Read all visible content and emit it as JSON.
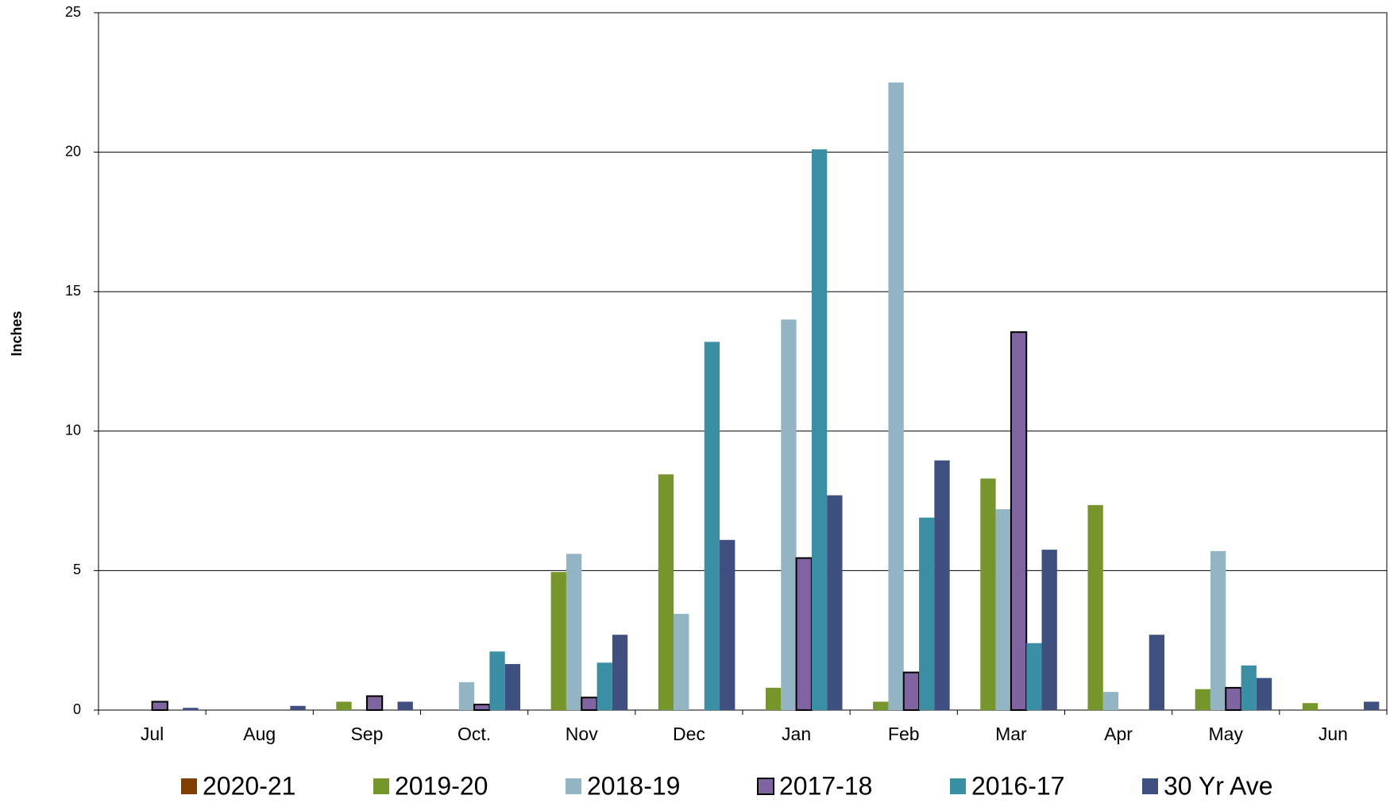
{
  "chart_data": {
    "type": "bar",
    "y_label": "Inches",
    "categories": [
      "Jul",
      "Aug",
      "Sep",
      "Oct.",
      "Nov",
      "Dec",
      "Jan",
      "Feb",
      "Mar",
      "Apr",
      "May",
      "Jun"
    ],
    "series": [
      {
        "name": "2020-21",
        "color": "#7f3f00",
        "values": [
          null,
          null,
          null,
          null,
          null,
          null,
          null,
          null,
          null,
          null,
          null,
          null
        ]
      },
      {
        "name": "2019-20",
        "color": "#76962b",
        "values": [
          0,
          0,
          0.3,
          0,
          4.95,
          8.45,
          0.8,
          0.3,
          8.3,
          7.35,
          0.75,
          0.25
        ]
      },
      {
        "name": "2018-19",
        "color": "#92b4c3",
        "values": [
          0,
          0,
          0,
          1.0,
          5.6,
          3.45,
          14.0,
          22.5,
          7.2,
          0.65,
          5.7,
          0
        ]
      },
      {
        "name": "2017-18",
        "color": "#8064a2",
        "border_color": "#000000",
        "values": [
          0.3,
          0,
          0.5,
          0.2,
          0.45,
          0,
          5.45,
          1.35,
          13.55,
          0,
          0.8,
          0
        ]
      },
      {
        "name": "2016-17",
        "color": "#3a8fa4",
        "values": [
          0,
          0,
          0,
          2.1,
          1.7,
          13.2,
          20.1,
          6.9,
          2.4,
          0,
          1.6,
          0
        ]
      },
      {
        "name": "30 Yr Ave",
        "color": "#3f4f7f",
        "values": [
          0.08,
          0.15,
          0.3,
          1.65,
          2.7,
          6.1,
          7.7,
          8.95,
          5.75,
          2.7,
          1.15,
          0.3
        ]
      }
    ],
    "ylim": [
      0,
      25
    ],
    "yticks": [
      0,
      5,
      10,
      15,
      20,
      25
    ],
    "grid": true,
    "legend": "bottom"
  }
}
